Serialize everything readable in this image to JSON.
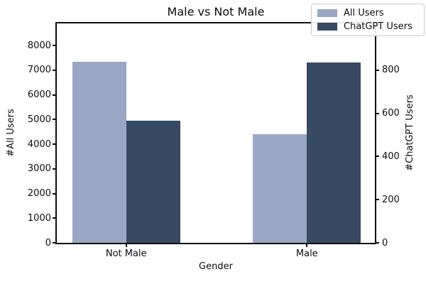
{
  "chart_data": {
    "type": "bar",
    "title": "Male vs Not Male",
    "xlabel": "Gender",
    "ylabel_left": "#All Users",
    "ylabel_right": "#ChatGPT Users",
    "categories": [
      "Not Male",
      "Male"
    ],
    "series": [
      {
        "name": "All Users",
        "axis": "left",
        "color": "#99A7C5",
        "values": [
          7340,
          4410
        ]
      },
      {
        "name": "ChatGPT Users",
        "axis": "right",
        "color": "#374A62",
        "values": [
          565,
          835
        ]
      }
    ],
    "left_axis": {
      "ticks": [
        0,
        1000,
        2000,
        3000,
        4000,
        5000,
        6000,
        7000,
        8000
      ],
      "ylim": [
        0,
        8900
      ]
    },
    "right_axis": {
      "ticks": [
        0,
        200,
        400,
        600,
        800
      ],
      "ylim": [
        0,
        1016
      ]
    },
    "legend": {
      "position": "upper right",
      "entries": [
        "All Users",
        "ChatGPT Users"
      ]
    },
    "grid": false,
    "spine_color": "#0d0d0d",
    "background_color": "#ffffff"
  }
}
